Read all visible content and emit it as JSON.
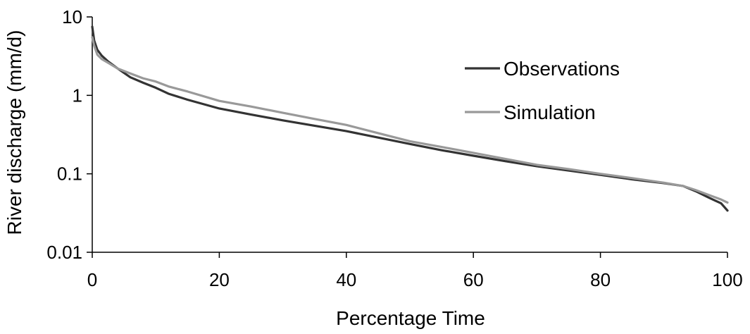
{
  "chart_data": {
    "type": "line",
    "title": "",
    "xlabel": "Percentage Time",
    "ylabel": "River discharge (mm/d)",
    "xlim": [
      0,
      100
    ],
    "ylim": [
      0.01,
      10
    ],
    "yscale": "log",
    "grid": false,
    "legend_position": "top-right",
    "x_ticks": [
      "0",
      "20",
      "40",
      "60",
      "80",
      "100"
    ],
    "y_ticks": [
      "0.01",
      "0.1",
      "1",
      "10"
    ],
    "series": [
      {
        "name": "Observations",
        "color": "#333333",
        "points": [
          [
            0,
            7.5
          ],
          [
            0.3,
            5.0
          ],
          [
            0.8,
            3.8
          ],
          [
            1.5,
            3.2
          ],
          [
            2.5,
            2.7
          ],
          [
            4,
            2.2
          ],
          [
            6,
            1.7
          ],
          [
            8,
            1.45
          ],
          [
            10,
            1.25
          ],
          [
            12,
            1.05
          ],
          [
            15,
            0.88
          ],
          [
            20,
            0.68
          ],
          [
            25,
            0.57
          ],
          [
            30,
            0.48
          ],
          [
            35,
            0.41
          ],
          [
            40,
            0.35
          ],
          [
            45,
            0.29
          ],
          [
            50,
            0.24
          ],
          [
            55,
            0.2
          ],
          [
            60,
            0.17
          ],
          [
            65,
            0.145
          ],
          [
            70,
            0.125
          ],
          [
            75,
            0.11
          ],
          [
            80,
            0.097
          ],
          [
            85,
            0.085
          ],
          [
            90,
            0.076
          ],
          [
            93,
            0.07
          ],
          [
            95,
            0.06
          ],
          [
            97,
            0.05
          ],
          [
            99,
            0.042
          ],
          [
            100,
            0.034
          ]
        ]
      },
      {
        "name": "Simulation",
        "color": "#999999",
        "points": [
          [
            0,
            5.5
          ],
          [
            0.3,
            4.3
          ],
          [
            0.8,
            3.3
          ],
          [
            1.5,
            2.9
          ],
          [
            2.5,
            2.6
          ],
          [
            4,
            2.2
          ],
          [
            6,
            1.9
          ],
          [
            8,
            1.65
          ],
          [
            10,
            1.5
          ],
          [
            12,
            1.3
          ],
          [
            15,
            1.12
          ],
          [
            20,
            0.85
          ],
          [
            25,
            0.72
          ],
          [
            30,
            0.6
          ],
          [
            35,
            0.5
          ],
          [
            40,
            0.42
          ],
          [
            45,
            0.33
          ],
          [
            50,
            0.26
          ],
          [
            55,
            0.22
          ],
          [
            60,
            0.185
          ],
          [
            65,
            0.155
          ],
          [
            70,
            0.13
          ],
          [
            75,
            0.115
          ],
          [
            80,
            0.1
          ],
          [
            85,
            0.088
          ],
          [
            90,
            0.077
          ],
          [
            93,
            0.07
          ],
          [
            95,
            0.062
          ],
          [
            97,
            0.054
          ],
          [
            99,
            0.047
          ],
          [
            100,
            0.043
          ]
        ]
      }
    ]
  }
}
